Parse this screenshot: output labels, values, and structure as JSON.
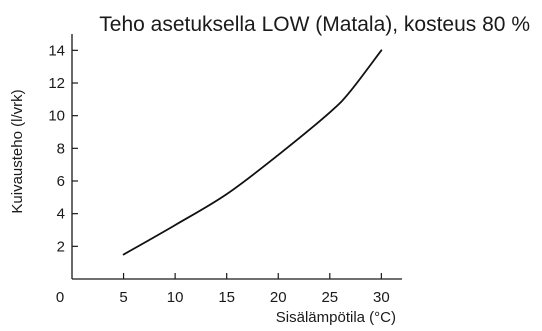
{
  "chart_data": {
    "type": "line",
    "title": "Teho asetuksella LOW (Matala), kosteus 80 %",
    "xlabel": "Sisälämpötila (°C)",
    "ylabel": "Kuivausteho (l/vrk)",
    "xlim": [
      0,
      32
    ],
    "ylim": [
      0,
      15
    ],
    "x_ticks": [
      0,
      5,
      10,
      15,
      20,
      25,
      30
    ],
    "x_tick_labels": [
      "0",
      "5",
      "10",
      "15",
      "20",
      "25",
      "30"
    ],
    "y_ticks": [
      2,
      4,
      6,
      8,
      10,
      12,
      14
    ],
    "y_tick_labels": [
      "2",
      "4",
      "6",
      "8",
      "10",
      "12",
      "14"
    ],
    "grid": false,
    "legend": "none",
    "series": [
      {
        "x": [
          5,
          10,
          15,
          20,
          25,
          27,
          30
        ],
        "y": [
          1.5,
          3.3,
          5.2,
          7.6,
          10.2,
          11.5,
          14.0
        ],
        "color": "#111111"
      }
    ]
  }
}
